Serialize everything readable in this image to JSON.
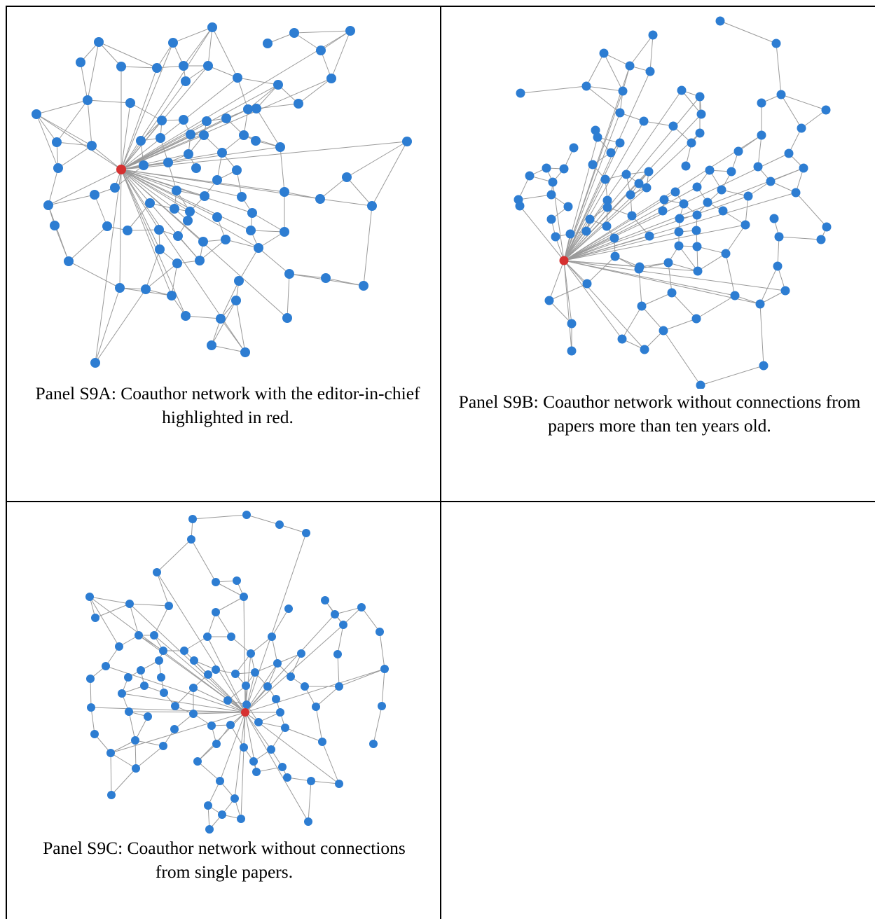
{
  "figure": {
    "panels": [
      {
        "id": "S9A",
        "caption": "Panel S9A: Coauthor network with the editor-in-chief highlighted in red."
      },
      {
        "id": "S9B",
        "caption": "Panel S9B: Coauthor network without connections from papers more than ten years old."
      },
      {
        "id": "S9C",
        "caption": "Panel S9C: Coauthor network without connections from single papers."
      }
    ],
    "colors": {
      "node": "#2d7dd2",
      "highlight_node": "#d63030",
      "edge": "#9a9a9a",
      "border": "#000000"
    }
  }
}
